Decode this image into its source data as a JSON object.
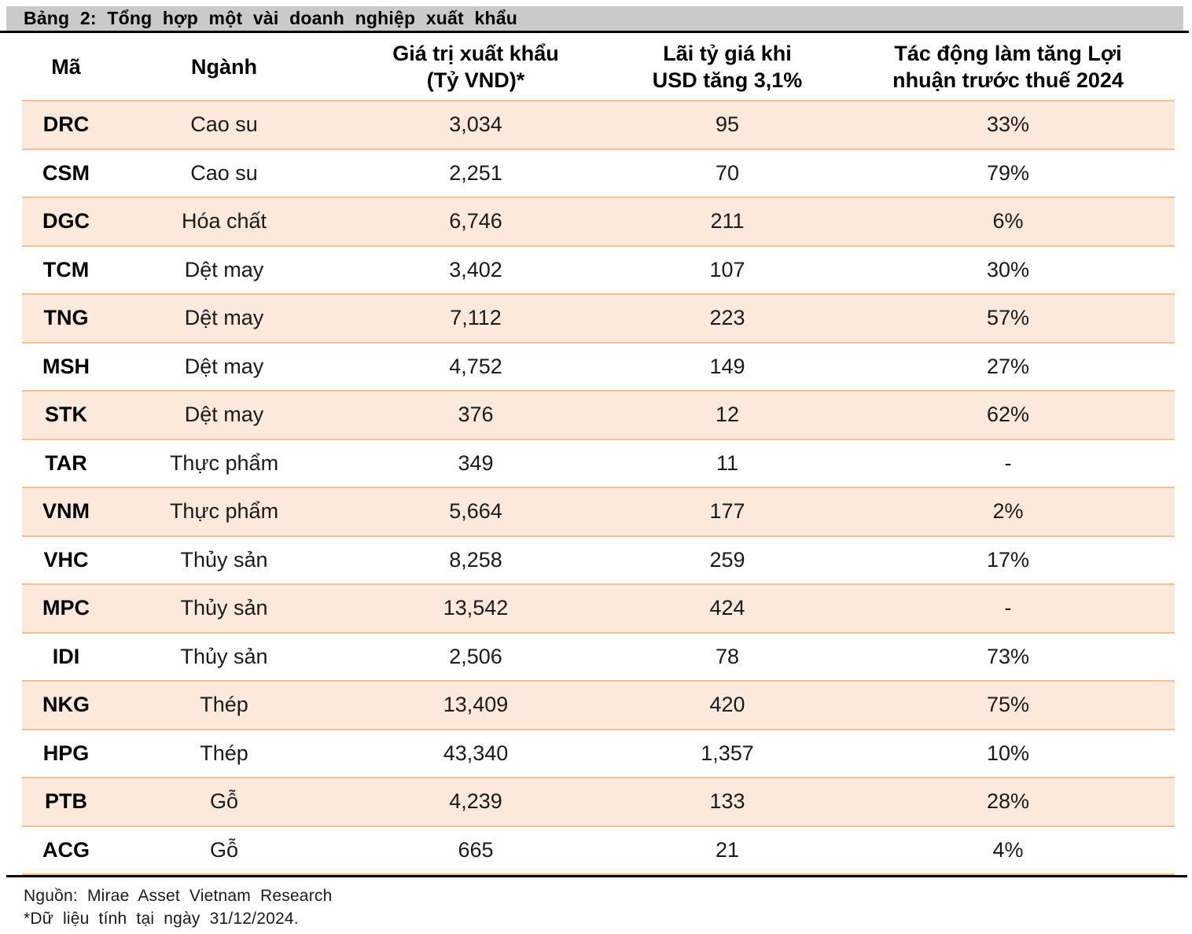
{
  "title_bar": {
    "label": "Bảng 2: Tổng hợp một vài doanh nghiệp xuất khẩu"
  },
  "table": {
    "columns": [
      {
        "label": "Mã"
      },
      {
        "label": "Ngành"
      },
      {
        "label": "Giá trị xuất khẩu\n(Tỷ VND)*"
      },
      {
        "label": "Lãi tỷ giá khi\nUSD tăng 3,1%"
      },
      {
        "label": "Tác động làm tăng Lợi\nnhuận trước thuế 2024"
      }
    ],
    "rows": [
      {
        "code": "DRC",
        "industry": "Cao su",
        "export_value": "3,034",
        "fx_gain": "95",
        "impact": "33%"
      },
      {
        "code": "CSM",
        "industry": "Cao su",
        "export_value": "2,251",
        "fx_gain": "70",
        "impact": "79%"
      },
      {
        "code": "DGC",
        "industry": "Hóa chất",
        "export_value": "6,746",
        "fx_gain": "211",
        "impact": "6%"
      },
      {
        "code": "TCM",
        "industry": "Dệt may",
        "export_value": "3,402",
        "fx_gain": "107",
        "impact": "30%"
      },
      {
        "code": "TNG",
        "industry": "Dệt may",
        "export_value": "7,112",
        "fx_gain": "223",
        "impact": "57%"
      },
      {
        "code": "MSH",
        "industry": "Dệt may",
        "export_value": "4,752",
        "fx_gain": "149",
        "impact": "27%"
      },
      {
        "code": "STK",
        "industry": "Dệt may",
        "export_value": "376",
        "fx_gain": "12",
        "impact": "62%"
      },
      {
        "code": "TAR",
        "industry": "Thực phẩm",
        "export_value": "349",
        "fx_gain": "11",
        "impact": "-"
      },
      {
        "code": "VNM",
        "industry": "Thực phẩm",
        "export_value": "5,664",
        "fx_gain": "177",
        "impact": "2%"
      },
      {
        "code": "VHC",
        "industry": "Thủy sản",
        "export_value": "8,258",
        "fx_gain": "259",
        "impact": "17%"
      },
      {
        "code": "MPC",
        "industry": "Thủy sản",
        "export_value": "13,542",
        "fx_gain": "424",
        "impact": "-"
      },
      {
        "code": "IDI",
        "industry": "Thủy sản",
        "export_value": "2,506",
        "fx_gain": "78",
        "impact": "73%"
      },
      {
        "code": "NKG",
        "industry": "Thép",
        "export_value": "13,409",
        "fx_gain": "420",
        "impact": "75%"
      },
      {
        "code": "HPG",
        "industry": "Thép",
        "export_value": "43,340",
        "fx_gain": "1,357",
        "impact": "10%"
      },
      {
        "code": "PTB",
        "industry": "Gỗ",
        "export_value": "4,239",
        "fx_gain": "133",
        "impact": "28%"
      },
      {
        "code": "ACG",
        "industry": "Gỗ",
        "export_value": "665",
        "fx_gain": "21",
        "impact": "4%"
      }
    ]
  },
  "footer": {
    "source": "Nguồn: Mirae Asset Vietnam Research",
    "note": "*Dữ liệu tính tại ngày 31/12/2024."
  },
  "colors": {
    "row_highlight": "#fce9dc",
    "row_border": "#f1c094",
    "title_bar_bg": "#cacaca",
    "rule_black": "#000000"
  }
}
